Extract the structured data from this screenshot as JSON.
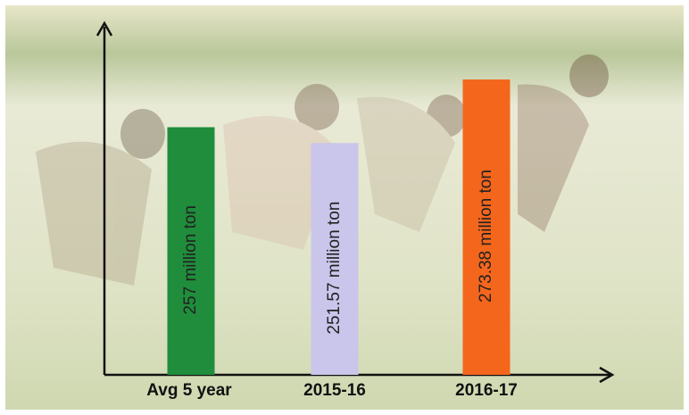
{
  "chart_data": {
    "type": "bar",
    "categories": [
      "Avg 5 year",
      "2015-16",
      "2016-17"
    ],
    "values": [
      257,
      251.57,
      273.38
    ],
    "value_labels": [
      "257 million ton",
      "251.57 million ton",
      "273.38 million ton"
    ],
    "colors": [
      "#1f8d3b",
      "#cac5ea",
      "#f4661c"
    ],
    "ylim": [
      172,
      293
    ]
  }
}
